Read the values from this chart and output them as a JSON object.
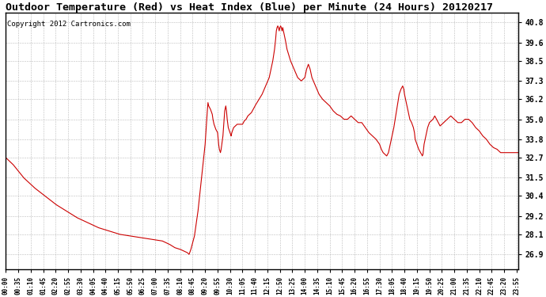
{
  "title": "Outdoor Temperature (Red) vs Heat Index (Blue) per Minute (24 Hours) 20120217",
  "copyright": "Copyright 2012 Cartronics.com",
  "y_ticks": [
    26.9,
    28.1,
    29.2,
    30.4,
    31.5,
    32.7,
    33.8,
    35.0,
    36.2,
    37.3,
    38.5,
    39.6,
    40.8
  ],
  "ylim_min": 26.0,
  "ylim_max": 41.4,
  "line_color": "#cc0000",
  "bg_color": "#ffffff",
  "title_fontsize": 9.5,
  "copyright_fontsize": 6.5,
  "x_tick_step_minutes": 35,
  "total_minutes": 1440,
  "waypoints": [
    [
      0,
      32.7
    ],
    [
      20,
      32.3
    ],
    [
      50,
      31.5
    ],
    [
      80,
      30.9
    ],
    [
      110,
      30.4
    ],
    [
      140,
      29.9
    ],
    [
      170,
      29.5
    ],
    [
      200,
      29.1
    ],
    [
      230,
      28.8
    ],
    [
      260,
      28.5
    ],
    [
      290,
      28.3
    ],
    [
      320,
      28.1
    ],
    [
      350,
      28.0
    ],
    [
      380,
      27.9
    ],
    [
      410,
      27.8
    ],
    [
      440,
      27.7
    ],
    [
      460,
      27.5
    ],
    [
      475,
      27.3
    ],
    [
      490,
      27.2
    ],
    [
      500,
      27.1
    ],
    [
      510,
      27.0
    ],
    [
      515,
      26.9
    ],
    [
      520,
      27.2
    ],
    [
      530,
      28.0
    ],
    [
      540,
      29.5
    ],
    [
      550,
      31.5
    ],
    [
      560,
      33.5
    ],
    [
      565,
      35.2
    ],
    [
      568,
      36.0
    ],
    [
      570,
      35.8
    ],
    [
      575,
      35.6
    ],
    [
      580,
      35.3
    ],
    [
      582,
      35.0
    ],
    [
      585,
      34.7
    ],
    [
      590,
      34.4
    ],
    [
      595,
      34.2
    ],
    [
      598,
      33.5
    ],
    [
      600,
      33.2
    ],
    [
      603,
      33.0
    ],
    [
      605,
      33.2
    ],
    [
      610,
      34.0
    ],
    [
      615,
      35.5
    ],
    [
      618,
      35.8
    ],
    [
      620,
      35.5
    ],
    [
      622,
      35.0
    ],
    [
      625,
      34.5
    ],
    [
      630,
      34.2
    ],
    [
      633,
      34.0
    ],
    [
      635,
      34.2
    ],
    [
      640,
      34.5
    ],
    [
      645,
      34.6
    ],
    [
      650,
      34.7
    ],
    [
      655,
      34.7
    ],
    [
      660,
      34.7
    ],
    [
      665,
      34.7
    ],
    [
      670,
      34.9
    ],
    [
      675,
      35.0
    ],
    [
      680,
      35.2
    ],
    [
      690,
      35.4
    ],
    [
      700,
      35.8
    ],
    [
      720,
      36.5
    ],
    [
      740,
      37.5
    ],
    [
      750,
      38.5
    ],
    [
      755,
      39.2
    ],
    [
      758,
      39.8
    ],
    [
      760,
      40.3
    ],
    [
      762,
      40.5
    ],
    [
      764,
      40.6
    ],
    [
      766,
      40.5
    ],
    [
      768,
      40.3
    ],
    [
      770,
      40.5
    ],
    [
      772,
      40.6
    ],
    [
      774,
      40.5
    ],
    [
      776,
      40.3
    ],
    [
      778,
      40.5
    ],
    [
      780,
      40.3
    ],
    [
      785,
      39.8
    ],
    [
      790,
      39.2
    ],
    [
      800,
      38.5
    ],
    [
      810,
      38.0
    ],
    [
      820,
      37.5
    ],
    [
      830,
      37.3
    ],
    [
      840,
      37.5
    ],
    [
      845,
      38.0
    ],
    [
      850,
      38.3
    ],
    [
      855,
      38.0
    ],
    [
      860,
      37.5
    ],
    [
      870,
      37.0
    ],
    [
      880,
      36.5
    ],
    [
      890,
      36.2
    ],
    [
      900,
      36.0
    ],
    [
      910,
      35.8
    ],
    [
      920,
      35.5
    ],
    [
      930,
      35.3
    ],
    [
      940,
      35.2
    ],
    [
      950,
      35.0
    ],
    [
      960,
      35.0
    ],
    [
      970,
      35.2
    ],
    [
      980,
      35.0
    ],
    [
      990,
      34.8
    ],
    [
      1000,
      34.8
    ],
    [
      1010,
      34.5
    ],
    [
      1020,
      34.2
    ],
    [
      1030,
      34.0
    ],
    [
      1040,
      33.8
    ],
    [
      1050,
      33.5
    ],
    [
      1055,
      33.2
    ],
    [
      1060,
      33.0
    ],
    [
      1065,
      32.9
    ],
    [
      1070,
      32.8
    ],
    [
      1075,
      33.0
    ],
    [
      1080,
      33.5
    ],
    [
      1090,
      34.5
    ],
    [
      1100,
      35.8
    ],
    [
      1105,
      36.5
    ],
    [
      1110,
      36.8
    ],
    [
      1115,
      37.0
    ],
    [
      1118,
      36.8
    ],
    [
      1120,
      36.5
    ],
    [
      1125,
      36.0
    ],
    [
      1130,
      35.5
    ],
    [
      1135,
      35.0
    ],
    [
      1140,
      34.8
    ],
    [
      1145,
      34.5
    ],
    [
      1148,
      34.2
    ],
    [
      1150,
      33.8
    ],
    [
      1155,
      33.5
    ],
    [
      1160,
      33.2
    ],
    [
      1165,
      33.0
    ],
    [
      1168,
      32.9
    ],
    [
      1170,
      32.8
    ],
    [
      1172,
      32.9
    ],
    [
      1175,
      33.5
    ],
    [
      1180,
      34.0
    ],
    [
      1185,
      34.5
    ],
    [
      1190,
      34.8
    ],
    [
      1200,
      35.0
    ],
    [
      1205,
      35.2
    ],
    [
      1210,
      35.0
    ],
    [
      1215,
      34.8
    ],
    [
      1220,
      34.6
    ],
    [
      1230,
      34.8
    ],
    [
      1240,
      35.0
    ],
    [
      1250,
      35.2
    ],
    [
      1260,
      35.0
    ],
    [
      1270,
      34.8
    ],
    [
      1280,
      34.8
    ],
    [
      1290,
      35.0
    ],
    [
      1300,
      35.0
    ],
    [
      1310,
      34.8
    ],
    [
      1320,
      34.5
    ],
    [
      1330,
      34.3
    ],
    [
      1340,
      34.0
    ],
    [
      1350,
      33.8
    ],
    [
      1360,
      33.5
    ],
    [
      1370,
      33.3
    ],
    [
      1380,
      33.2
    ],
    [
      1390,
      33.0
    ],
    [
      1400,
      33.0
    ],
    [
      1410,
      33.0
    ],
    [
      1420,
      33.0
    ],
    [
      1430,
      33.0
    ],
    [
      1439,
      33.0
    ]
  ]
}
